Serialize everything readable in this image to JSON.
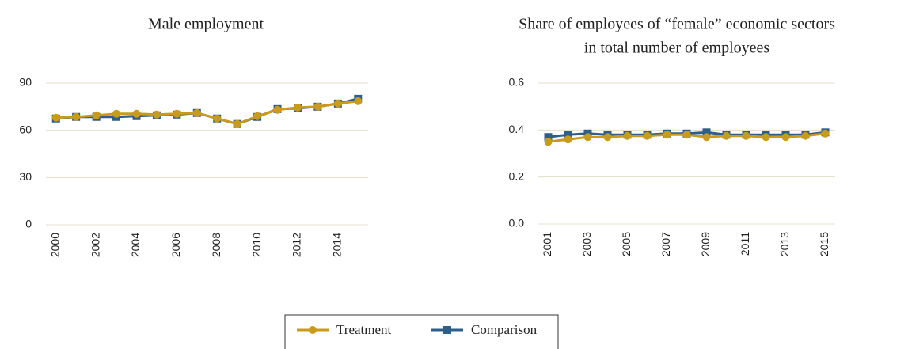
{
  "chart_data": [
    {
      "type": "line",
      "title": "Male employment",
      "categories": [
        "2000",
        null,
        "2002",
        null,
        "2004",
        null,
        "2006",
        null,
        "2008",
        null,
        "2010",
        null,
        "2012",
        null,
        "2014",
        null
      ],
      "series": [
        {
          "name": "Comparison",
          "color": "#2e5f8a",
          "marker": "square",
          "values": [
            67.5,
            68.5,
            68.5,
            68.5,
            69,
            69.5,
            70,
            71,
            67.5,
            64,
            68.5,
            73.5,
            74,
            75,
            77,
            80
          ]
        },
        {
          "name": "Treatment",
          "color": "#c89b1c",
          "marker": "circle",
          "values": [
            68,
            68.5,
            69.5,
            70.5,
            70.5,
            70,
            70.5,
            71,
            67.5,
            64,
            69,
            73,
            74.5,
            75,
            77,
            78.5
          ]
        }
      ],
      "ylim": [
        0,
        90
      ],
      "yticks": [
        0,
        30,
        60,
        90
      ],
      "grid": true
    },
    {
      "type": "line",
      "title": [
        "Share of employees of “female” economic sectors",
        "in total number of employees"
      ],
      "categories": [
        "2001",
        null,
        "2003",
        null,
        "2005",
        null,
        "2007",
        null,
        "2009",
        null,
        "2011",
        null,
        "2013",
        null,
        "2015"
      ],
      "series": [
        {
          "name": "Comparison",
          "color": "#2e5f8a",
          "marker": "square",
          "values": [
            0.37,
            0.38,
            0.385,
            0.38,
            0.38,
            0.38,
            0.385,
            0.385,
            0.39,
            0.38,
            0.38,
            0.38,
            0.38,
            0.38,
            0.39
          ]
        },
        {
          "name": "Treatment",
          "color": "#c89b1c",
          "marker": "circle",
          "values": [
            0.35,
            0.36,
            0.37,
            0.37,
            0.375,
            0.375,
            0.38,
            0.38,
            0.37,
            0.375,
            0.375,
            0.37,
            0.37,
            0.375,
            0.385
          ]
        }
      ],
      "ylim": [
        0,
        0.6
      ],
      "yticks": [
        {
          "value": 0,
          "label": "0.0"
        },
        0.2,
        0.4,
        0.6
      ],
      "grid": true
    }
  ]
}
